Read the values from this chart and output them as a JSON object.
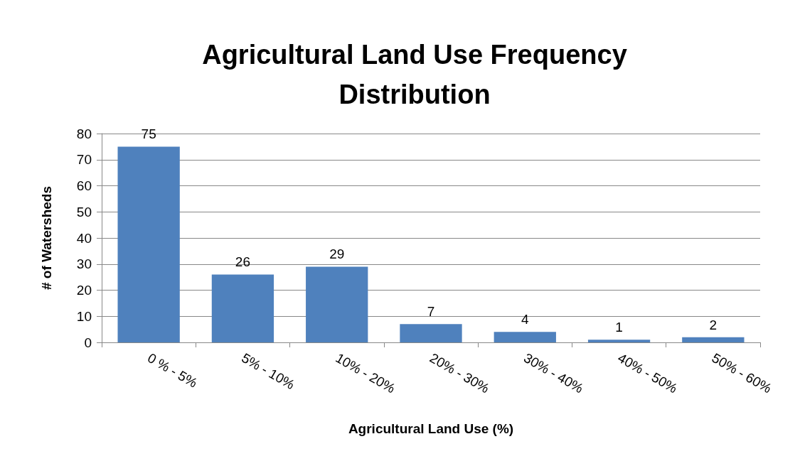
{
  "chart_data": {
    "type": "bar",
    "title": "Agricultural Land Use Frequency\nDistribution",
    "xlabel": "Agricultural Land Use (%)",
    "ylabel": "# of Watersheds",
    "categories": [
      "0 % - 5%",
      "5% - 10%",
      "10% - 20%",
      "20% - 30%",
      "30% - 40%",
      "40% - 50%",
      "50% - 60%"
    ],
    "values": [
      75,
      26,
      29,
      7,
      4,
      1,
      2
    ],
    "color": "#4f81bd",
    "ylim": [
      0,
      80
    ],
    "yticks": [
      0,
      10,
      20,
      30,
      40,
      50,
      60,
      70,
      80
    ],
    "grid": "y",
    "data_labels": true
  }
}
